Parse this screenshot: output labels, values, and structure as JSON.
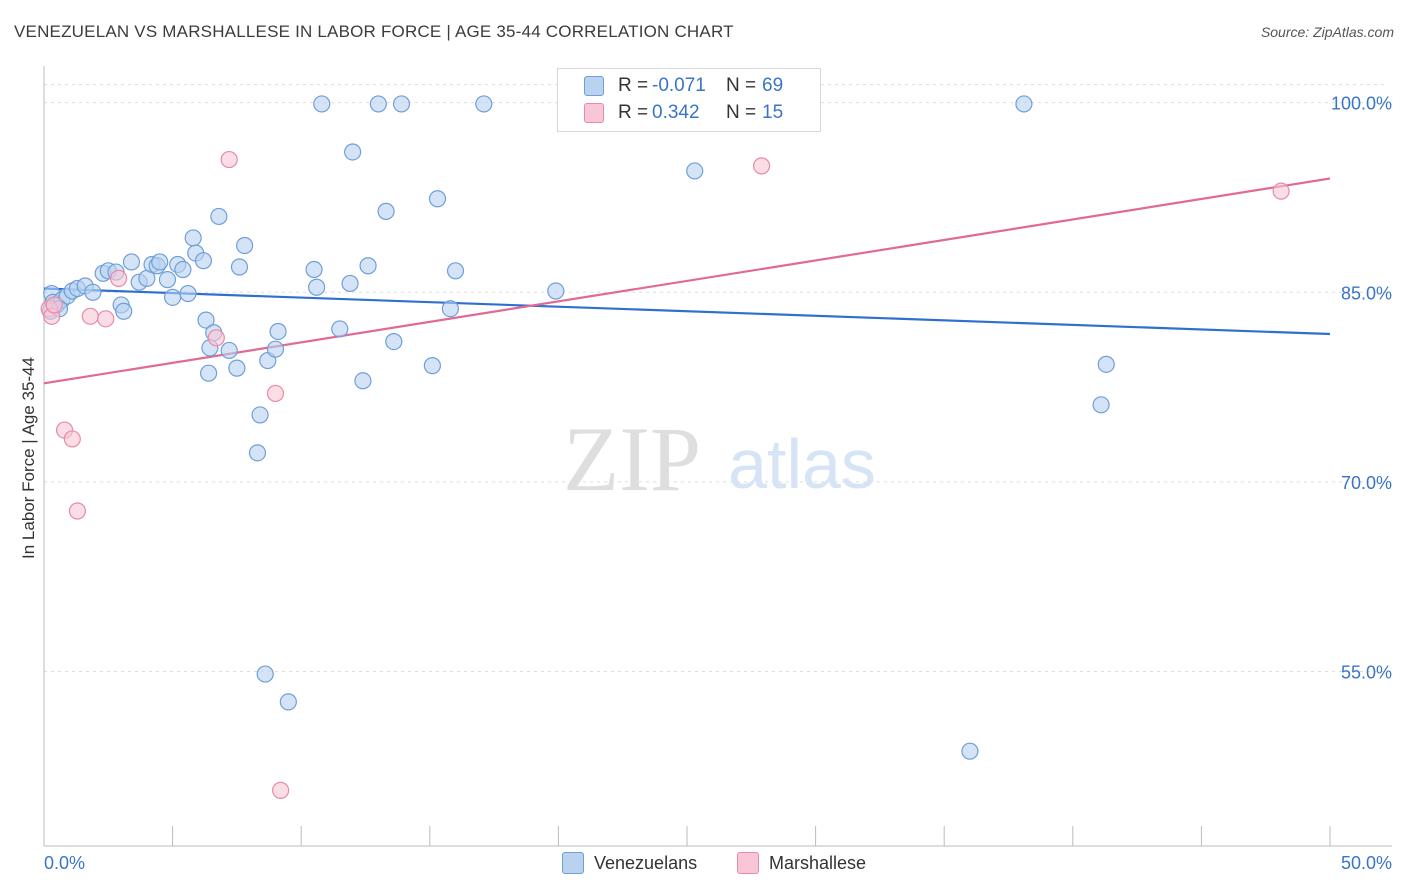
{
  "title": "VENEZUELAN VS MARSHALLESE IN LABOR FORCE | AGE 35-44 CORRELATION CHART",
  "source": "Source: ZipAtlas.com",
  "watermark": {
    "zip": "ZIP",
    "atlas": "atlas"
  },
  "legend": {
    "series1": {
      "r_label": "R =",
      "r_value": "-0.071",
      "n_label": "N =",
      "n_value": "69"
    },
    "series2": {
      "r_label": "R =",
      "r_value": "0.342",
      "n_label": "N =",
      "n_value": "15"
    }
  },
  "bottom_legend": {
    "series1": "Venezuelans",
    "series2": "Marshallese"
  },
  "colors": {
    "blue_fill": "#b8d2f0",
    "blue_stroke": "#6f9fd8",
    "blue_line": "#2f6fd0",
    "pink_fill": "#f8c6d6",
    "pink_stroke": "#e88aa8",
    "pink_line": "#e06a96",
    "axis_text": "#3a74c9",
    "grid": "#dddddd"
  },
  "chart_data": {
    "type": "scatter",
    "title": "VENEZUELAN VS MARSHALLESE IN LABOR FORCE | AGE 35-44 CORRELATION CHART",
    "xlabel": "",
    "ylabel": "In Labor Force | Age 35-44",
    "xlim": [
      0,
      50
    ],
    "ylim": [
      41.2,
      102.9
    ],
    "x_tick_labels": [
      "0.0%",
      "50.0%"
    ],
    "y_ticks": [
      55,
      70,
      85,
      100
    ],
    "y_tick_labels": [
      "55.0%",
      "70.0%",
      "85.0%",
      "100.0%"
    ],
    "series": [
      {
        "name": "Venezuelans",
        "R": -0.071,
        "N": 69,
        "trend": {
          "x": [
            0,
            50
          ],
          "y": [
            85.3,
            81.7
          ]
        },
        "points": [
          [
            0.3,
            84.9
          ],
          [
            0.35,
            84.2
          ],
          [
            0.5,
            84.0
          ],
          [
            0.7,
            84.4
          ],
          [
            0.9,
            84.7
          ],
          [
            1.1,
            85.1
          ],
          [
            1.3,
            85.3
          ],
          [
            1.6,
            85.5
          ],
          [
            1.9,
            85.0
          ],
          [
            2.3,
            86.5
          ],
          [
            2.5,
            86.7
          ],
          [
            2.8,
            86.6
          ],
          [
            3.0,
            84.0
          ],
          [
            3.1,
            83.5
          ],
          [
            3.4,
            87.4
          ],
          [
            3.7,
            85.8
          ],
          [
            4.0,
            86.1
          ],
          [
            4.2,
            87.2
          ],
          [
            4.4,
            87.1
          ],
          [
            4.5,
            87.4
          ],
          [
            4.8,
            86.0
          ],
          [
            5.0,
            84.6
          ],
          [
            5.2,
            87.2
          ],
          [
            5.4,
            86.8
          ],
          [
            5.6,
            84.9
          ],
          [
            5.8,
            89.3
          ],
          [
            5.9,
            88.1
          ],
          [
            6.2,
            87.5
          ],
          [
            6.3,
            82.8
          ],
          [
            6.4,
            78.6
          ],
          [
            6.6,
            81.8
          ],
          [
            6.8,
            91.0
          ],
          [
            7.2,
            80.4
          ],
          [
            7.5,
            79.0
          ],
          [
            7.6,
            87.0
          ],
          [
            7.8,
            88.7
          ],
          [
            8.3,
            72.3
          ],
          [
            8.4,
            75.3
          ],
          [
            8.6,
            54.8
          ],
          [
            8.7,
            79.6
          ],
          [
            9.0,
            80.5
          ],
          [
            9.1,
            81.9
          ],
          [
            9.5,
            52.6
          ],
          [
            10.5,
            86.8
          ],
          [
            10.6,
            85.4
          ],
          [
            10.8,
            99.9
          ],
          [
            11.5,
            82.1
          ],
          [
            11.9,
            85.7
          ],
          [
            12.0,
            96.1
          ],
          [
            12.4,
            78.0
          ],
          [
            12.6,
            87.1
          ],
          [
            13.0,
            99.9
          ],
          [
            13.3,
            91.4
          ],
          [
            13.6,
            81.1
          ],
          [
            13.9,
            99.9
          ],
          [
            15.1,
            79.2
          ],
          [
            15.3,
            92.4
          ],
          [
            15.8,
            83.7
          ],
          [
            16.0,
            86.7
          ],
          [
            17.1,
            99.9
          ],
          [
            19.9,
            85.1
          ],
          [
            25.3,
            94.6
          ],
          [
            36.0,
            48.7
          ],
          [
            38.1,
            99.9
          ],
          [
            41.1,
            76.1
          ],
          [
            41.3,
            79.3
          ],
          [
            0.25,
            83.5
          ],
          [
            0.6,
            83.7
          ],
          [
            6.45,
            80.6
          ]
        ]
      },
      {
        "name": "Marshallese",
        "R": 0.342,
        "N": 15,
        "trend": {
          "x": [
            0,
            50
          ],
          "y": [
            77.8,
            94.0
          ]
        },
        "points": [
          [
            0.2,
            83.7
          ],
          [
            0.3,
            83.1
          ],
          [
            0.8,
            74.1
          ],
          [
            1.1,
            73.4
          ],
          [
            1.3,
            67.7
          ],
          [
            1.8,
            83.1
          ],
          [
            2.4,
            82.9
          ],
          [
            2.9,
            86.1
          ],
          [
            7.2,
            95.5
          ],
          [
            6.7,
            81.4
          ],
          [
            9.0,
            77.0
          ],
          [
            9.2,
            45.6
          ],
          [
            27.9,
            95.0
          ],
          [
            48.1,
            93.0
          ],
          [
            0.4,
            84.0
          ]
        ]
      }
    ]
  }
}
